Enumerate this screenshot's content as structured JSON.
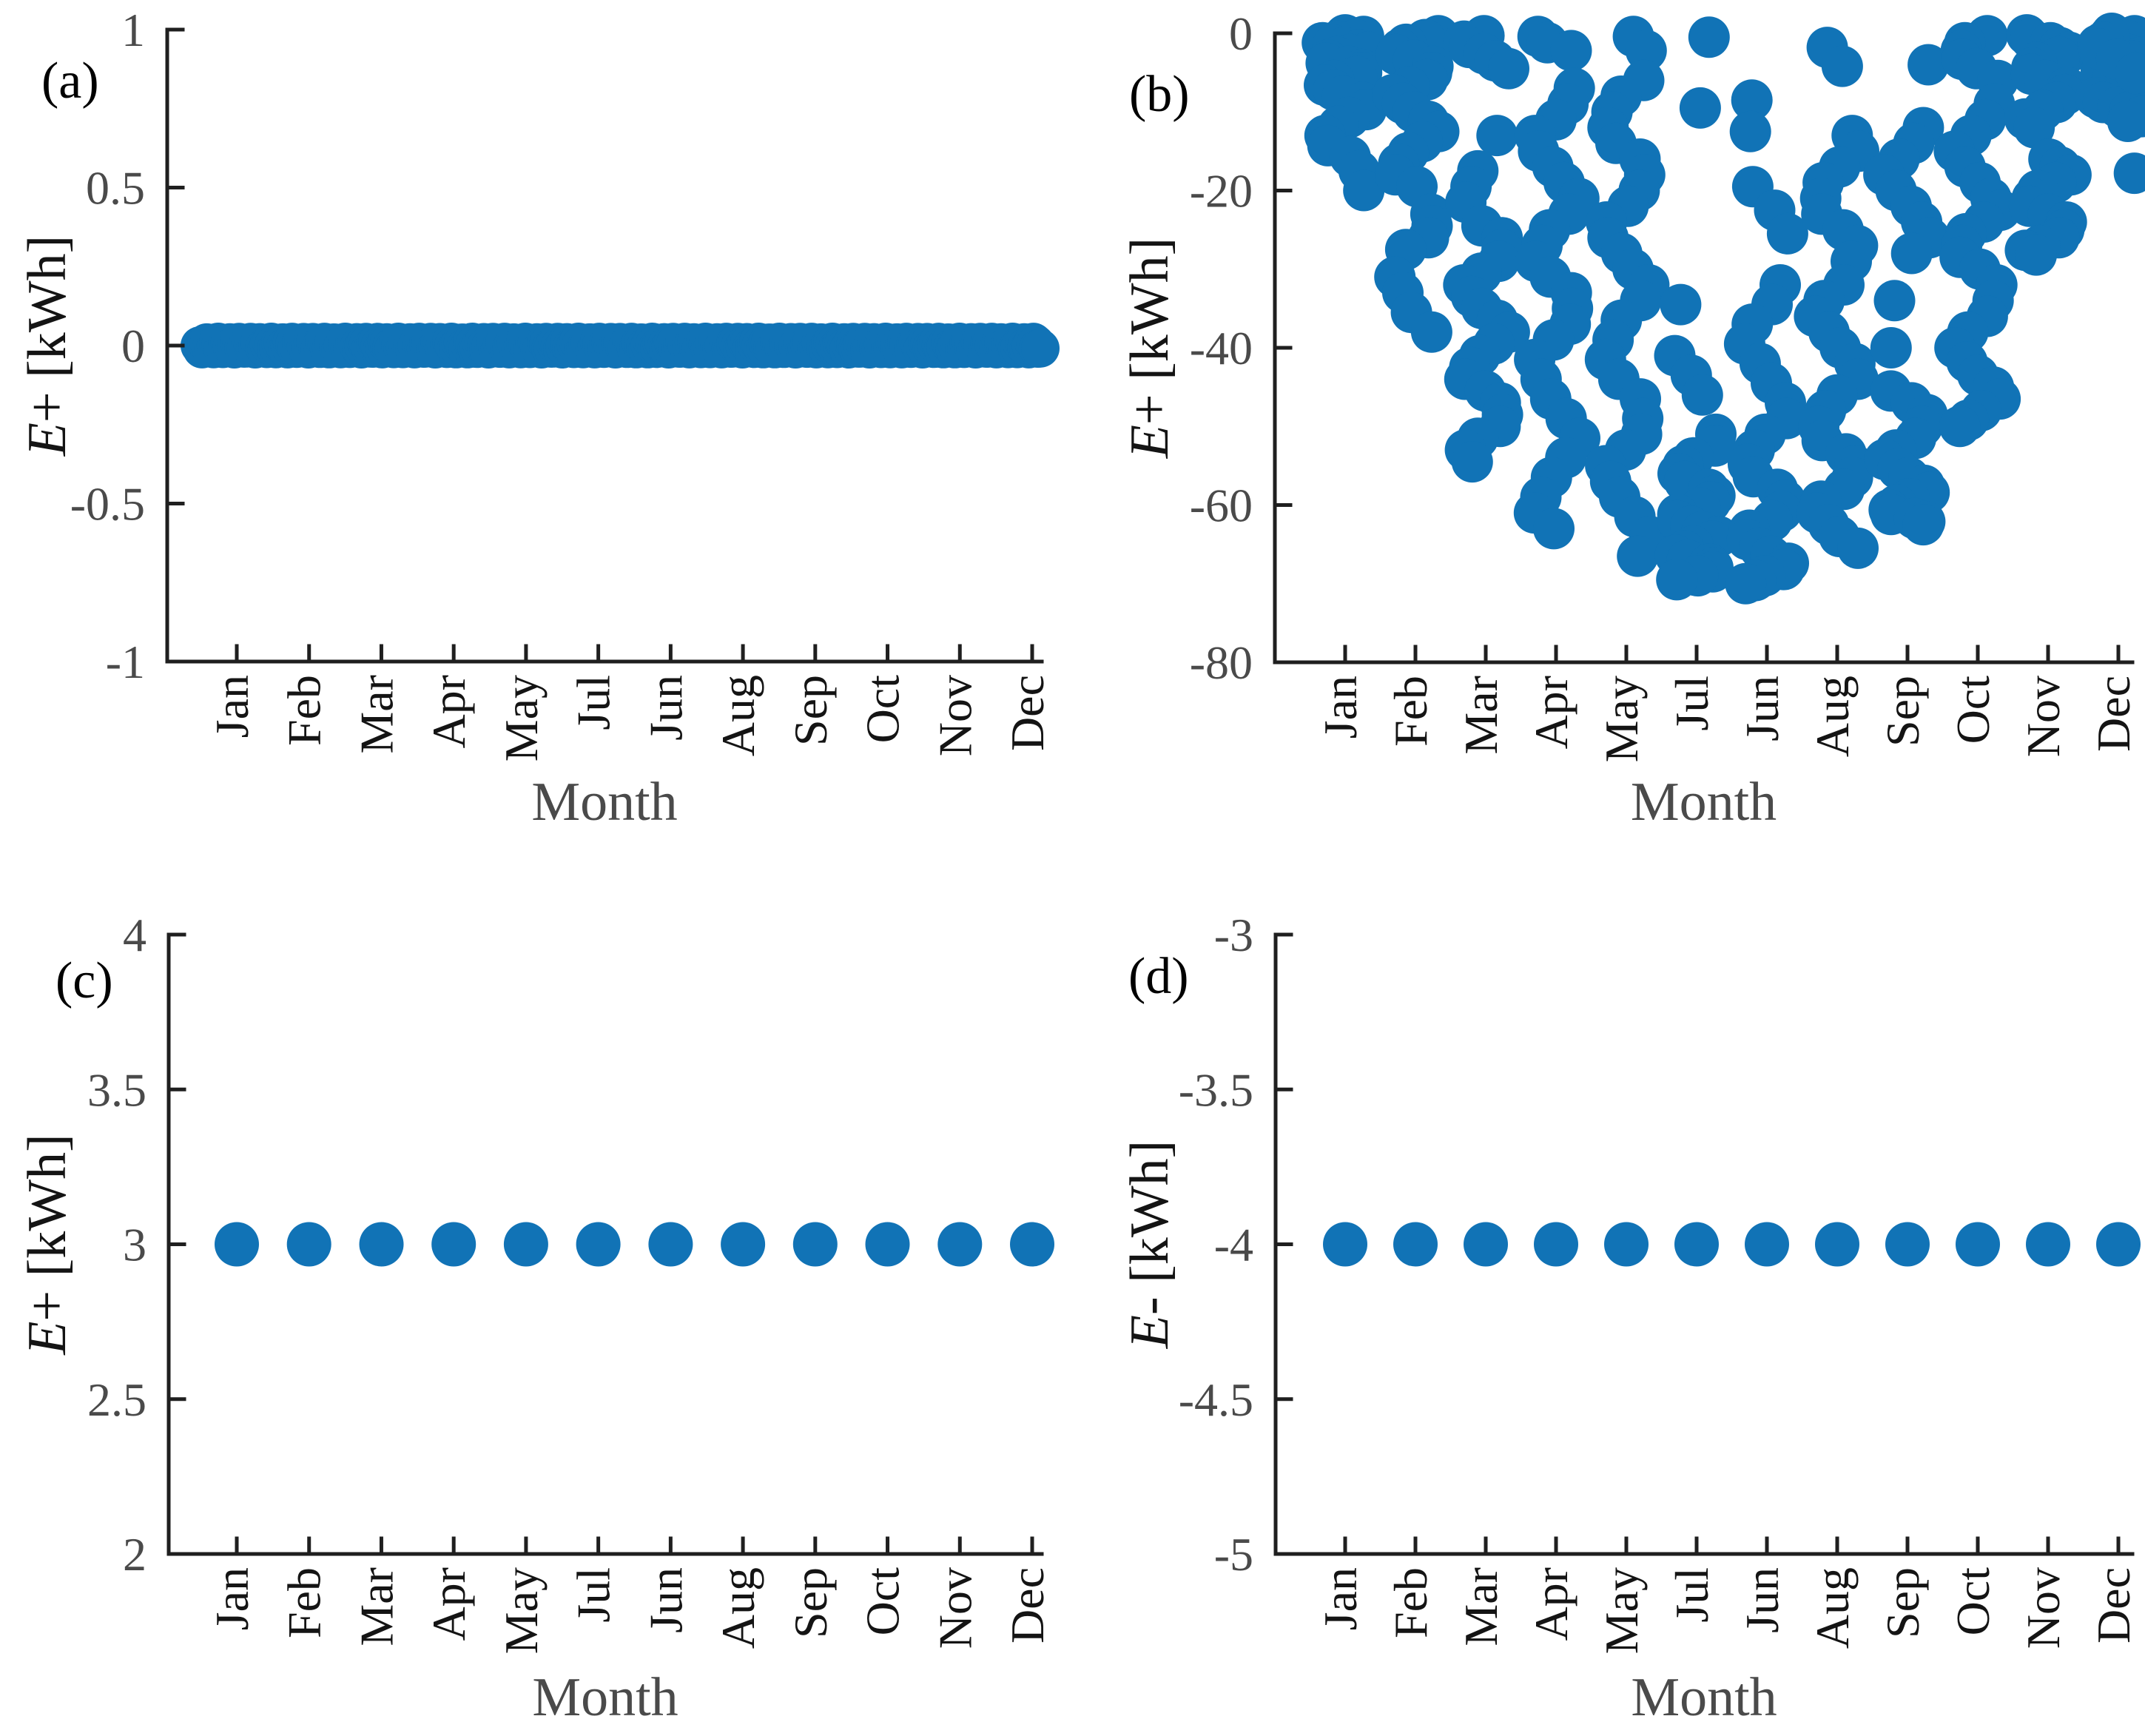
{
  "figure": {
    "marker_color": "#1173b6",
    "axis_color": "#1f1f1f",
    "tick_label_color": "#4a4a4a",
    "month_label_color": "#141414",
    "xlabel_color": "#4a4a4a"
  },
  "months_order": [
    "Jan",
    "Feb",
    "Mar",
    "Apr",
    "May",
    "Jul",
    "Jun",
    "Aug",
    "Sep",
    "Oct",
    "Nov",
    "Dec"
  ],
  "chart_data": [
    {
      "panel_label": "(a)",
      "type": "scatter",
      "xlabel": "Month",
      "ylabel": "E+ [kWh]",
      "ylim": [
        -1,
        1
      ],
      "yticks": [
        1,
        0.5,
        0,
        -0.5,
        -1
      ],
      "categories": [
        "Jan",
        "Feb",
        "Mar",
        "Apr",
        "May",
        "Jul",
        "Jun",
        "Aug",
        "Sep",
        "Oct",
        "Nov",
        "Dec"
      ],
      "points_per_month": [
        31,
        28,
        31,
        30,
        31,
        31,
        30,
        31,
        30,
        31,
        30,
        31
      ],
      "monthly_value": 0,
      "note": "all daily values equal 0; overlapping markers form a continuous horizontal band at 0"
    },
    {
      "panel_label": "(b)",
      "type": "scatter",
      "xlabel": "Month",
      "ylabel": "E+ [kWh]",
      "ylim": [
        -80,
        0
      ],
      "yticks": [
        0,
        -20,
        -40,
        -60,
        -80
      ],
      "categories": [
        "Jan",
        "Feb",
        "Mar",
        "Apr",
        "May",
        "Jul",
        "Jun",
        "Aug",
        "Sep",
        "Oct",
        "Nov",
        "Dec"
      ],
      "values_by_month": [
        [
          -0.2,
          -0.4,
          -0.6,
          -0.8,
          -1,
          -1.2,
          -1.5,
          -1.8,
          -2.1,
          -2.4,
          -2.7,
          -3,
          -3.4,
          -3.8,
          -4.2,
          -4.6,
          -5,
          -5.5,
          -6,
          -6.6,
          -7.2,
          -8,
          -8.8,
          -9.7,
          -10.7,
          -11.8,
          -13,
          -14.3,
          -15.7,
          -17.5,
          -20
        ],
        [
          -0.3,
          -0.8,
          -1.4,
          -2,
          -2.7,
          -3.4,
          -4.2,
          -5,
          -5.9,
          -6.8,
          -7.8,
          -8.9,
          -10,
          -11.2,
          -12.5,
          -13.8,
          -15.2,
          -16.6,
          -18,
          -19.5,
          -23,
          -24.5,
          -26,
          -27.5,
          -31,
          -33,
          -35.5,
          -38
        ],
        [
          -0.3,
          -1,
          -1.8,
          -2.6,
          -3.5,
          -4.5,
          -13,
          -17.5,
          -19.5,
          -21.5,
          -24.5,
          -26,
          -27.5,
          -29,
          -30.5,
          -32,
          -33.5,
          -35,
          -36.5,
          -38,
          -39.5,
          -41,
          -42.5,
          -44,
          -45.5,
          -47,
          -48.5,
          -50,
          -51.5,
          -53,
          -54.5
        ],
        [
          -0.4,
          -1.2,
          -2.2,
          -7,
          -9,
          -11,
          -13,
          -15,
          -17,
          -19,
          -21,
          -23,
          -25,
          -27,
          -29,
          -31,
          -33,
          -35,
          -37,
          -39,
          -41.5,
          -44,
          -46.5,
          -49,
          -51.5,
          -54,
          -56.5,
          -59,
          -61,
          -63
        ],
        [
          -0.4,
          -2.2,
          -6,
          -8,
          -10,
          -12,
          -14,
          -16,
          -18,
          -20,
          -22,
          -24,
          -26,
          -28,
          -30,
          -32,
          -34,
          -36.5,
          -39,
          -41.5,
          -44,
          -46.5,
          -49,
          -51,
          -53,
          -55,
          -57,
          -59,
          -61.5,
          -64,
          -66.5
        ],
        [
          -0.5,
          -9.5,
          -34.5,
          -41,
          -43.5,
          -46,
          -51,
          -52.5,
          -54,
          -55,
          -56,
          -57,
          -58,
          -58.8,
          -59.6,
          -60.4,
          -61.2,
          -62,
          -62.7,
          -63.4,
          -64,
          -64.6,
          -65.2,
          -65.8,
          -66.4,
          -67,
          -67.5,
          -68,
          -68.5,
          -69,
          -69.5
        ],
        [
          -8.5,
          -12.5,
          -19.5,
          -22.5,
          -25.5,
          -32,
          -34.5,
          -37,
          -39.5,
          -42,
          -44.5,
          -47,
          -49,
          -51,
          -53,
          -54.8,
          -56.4,
          -58,
          -59.4,
          -60.8,
          -62,
          -63.2,
          -64.4,
          -65.5,
          -66.5,
          -67.4,
          -68.2,
          -69,
          -69.6,
          -70
        ],
        [
          -1.8,
          -4.2,
          -13,
          -15,
          -17,
          -19,
          -21,
          -23,
          -25,
          -27,
          -29,
          -32,
          -34,
          -36,
          -38,
          -40,
          -42,
          -44,
          -46,
          -48,
          -50,
          -51.8,
          -53.5,
          -55,
          -56.5,
          -58,
          -59.5,
          -61,
          -62.5,
          -64,
          -65.5
        ],
        [
          -4,
          -12,
          -14,
          -16,
          -18,
          -20,
          -22,
          -24,
          -26,
          -28,
          -34,
          -40,
          -45.5,
          -47,
          -48.5,
          -50,
          -51.5,
          -53,
          -54.2,
          -55.4,
          -56.5,
          -57.5,
          -58.4,
          -59.2,
          -60,
          -60.6,
          -61.2,
          -61.7,
          -62.1,
          -62.5
        ],
        [
          -0.3,
          -1.2,
          -2.2,
          -3.3,
          -4.5,
          -6,
          -9,
          -11,
          -13,
          -15,
          -17,
          -19,
          -21,
          -22.5,
          -24,
          -25.5,
          -27,
          -28.5,
          -30,
          -32,
          -34,
          -36,
          -38,
          -40,
          -41.8,
          -43.5,
          -45,
          -46.5,
          -48,
          -49.2,
          -50
        ],
        [
          -0.2,
          -0.7,
          -1.2,
          -1.8,
          -2.4,
          -3,
          -3.7,
          -4.4,
          -5.2,
          -6,
          -6.9,
          -7.8,
          -8.8,
          -9.8,
          -10.9,
          -12,
          -16,
          -17,
          -18,
          -19,
          -20,
          -21,
          -22,
          -23,
          -24,
          -25,
          -26,
          -27,
          -27.6,
          -28.2
        ],
        [
          0,
          -0.3,
          -0.6,
          -0.9,
          -1.2,
          -1.5,
          -1.9,
          -2.3,
          -2.7,
          -3.1,
          -3.5,
          -3.9,
          -4.4,
          -4.9,
          -5.4,
          -5.9,
          -6.4,
          -7,
          -7.6,
          -8.2,
          -8.8,
          -9.4,
          -10,
          -10.6,
          -11.2,
          -0.4,
          -1.1,
          -2,
          -3.3,
          -5.1,
          -17.8
        ]
      ]
    },
    {
      "panel_label": "(c)",
      "type": "scatter",
      "xlabel": "Month",
      "ylabel": "E+ [kWh]",
      "ylim": [
        2,
        4
      ],
      "yticks": [
        4,
        3.5,
        3,
        2.5,
        2
      ],
      "categories": [
        "Jan",
        "Feb",
        "Mar",
        "Apr",
        "May",
        "Jul",
        "Jun",
        "Aug",
        "Sep",
        "Oct",
        "Nov",
        "Dec"
      ],
      "monthly_values": [
        3,
        3,
        3,
        3,
        3,
        3,
        3,
        3,
        3,
        3,
        3,
        3
      ]
    },
    {
      "panel_label": "(d)",
      "type": "scatter",
      "xlabel": "Month",
      "ylabel": "E- [kWh]",
      "ylim": [
        -5,
        -3
      ],
      "yticks": [
        -3,
        -3.5,
        -4,
        -4.5,
        -5
      ],
      "categories": [
        "Jan",
        "Feb",
        "Mar",
        "Apr",
        "May",
        "Jul",
        "Jun",
        "Aug",
        "Sep",
        "Oct",
        "Nov",
        "Dec"
      ],
      "monthly_values": [
        -4,
        -4,
        -4,
        -4,
        -4,
        -4,
        -4,
        -4,
        -4,
        -4,
        -4,
        -4
      ]
    }
  ]
}
